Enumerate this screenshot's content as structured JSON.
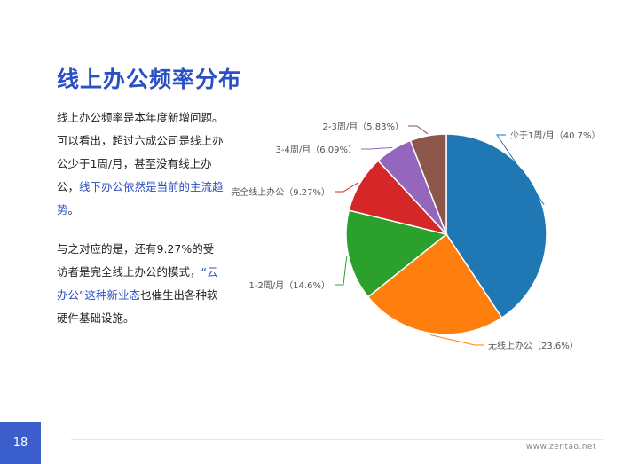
{
  "page": {
    "title": "线上办公频率分布",
    "page_number": "18",
    "footer_url": "www.zentao.net"
  },
  "text": {
    "p1_a": "线上办公频率是本年度新增问题。可以看出，超过六成公司是线上办公少于1周/月，甚至没有线上办公，",
    "p1_b": "线下办公依然是当前的主流趋势",
    "p1_c": "。",
    "p2_a": "与之对应的是，还有9.27%的受访者是完全线上办公的模式，",
    "p2_b": "“云办公”这种新业态",
    "p2_c": "也催生出各种软硬件基础设施。"
  },
  "colors": {
    "accent": "#2b50c4"
  },
  "chart_data": {
    "type": "pie",
    "slices": [
      {
        "label": "少于1周/月",
        "value": 40.7,
        "display": "少于1周/月（40.7%）",
        "color": "#1f77b4"
      },
      {
        "label": "无线上办公",
        "value": 23.6,
        "display": "无线上办公（23.6%）",
        "color": "#ff7f0e"
      },
      {
        "label": "1-2周/月",
        "value": 14.6,
        "display": "1-2周/月（14.6%）",
        "color": "#2ca02c"
      },
      {
        "label": "完全线上办公",
        "value": 9.27,
        "display": "完全线上办公（9.27%）",
        "color": "#d62728"
      },
      {
        "label": "3-4周/月",
        "value": 6.09,
        "display": "3-4周/月（6.09%）",
        "color": "#9467bd"
      },
      {
        "label": "2-3周/月",
        "value": 5.83,
        "display": "2-3周/月（5.83%）",
        "color": "#8c564b"
      }
    ]
  }
}
